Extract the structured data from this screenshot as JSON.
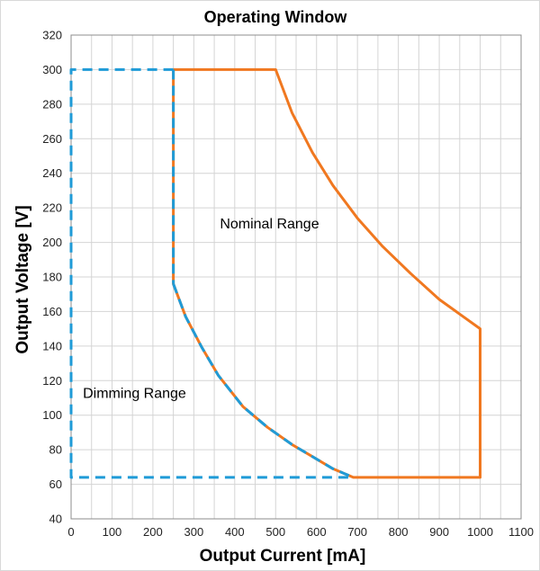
{
  "chart_data": {
    "type": "line",
    "title": "Operating Window",
    "xlabel": "Output Current [mA]",
    "ylabel": "Output Voltage [V]",
    "xlim": [
      0,
      1100
    ],
    "ylim": [
      40,
      320
    ],
    "xticks": [
      0,
      100,
      200,
      300,
      400,
      500,
      600,
      700,
      800,
      900,
      1000,
      1100
    ],
    "yticks": [
      40,
      60,
      80,
      100,
      120,
      140,
      160,
      180,
      200,
      220,
      240,
      260,
      280,
      300,
      320
    ],
    "x_minor_step": 50,
    "grid": true,
    "annotations": [
      {
        "text": "Nominal Range",
        "x": 485,
        "y": 208
      },
      {
        "text": "Dimming Range",
        "x": 155,
        "y": 110
      }
    ],
    "series": [
      {
        "color": "#f07820",
        "style": "solid",
        "points": [
          [
            250,
            300
          ],
          [
            500,
            300
          ],
          [
            540,
            275
          ],
          [
            590,
            252
          ],
          [
            640,
            233
          ],
          [
            700,
            214
          ],
          [
            760,
            198
          ],
          [
            830,
            182
          ],
          [
            900,
            167
          ],
          [
            1000,
            150
          ],
          [
            1000,
            64
          ],
          [
            690,
            64
          ],
          [
            640,
            69
          ],
          [
            590,
            76
          ],
          [
            540,
            83
          ],
          [
            480,
            93
          ],
          [
            420,
            105
          ],
          [
            360,
            123
          ],
          [
            320,
            139
          ],
          [
            280,
            157
          ],
          [
            250,
            176
          ],
          [
            250,
            300
          ]
        ]
      },
      {
        "color": "#1f9bd7",
        "style": "dashed",
        "points": [
          [
            250,
            300
          ],
          [
            0,
            300
          ],
          [
            0,
            64
          ],
          [
            690,
            64
          ]
        ]
      },
      {
        "color": "#1f9bd7",
        "style": "dashed",
        "points": [
          [
            250,
            300
          ],
          [
            250,
            176
          ]
        ]
      },
      {
        "color": "#1f9bd7",
        "style": "dashed",
        "points": [
          [
            250,
            176
          ],
          [
            280,
            157
          ],
          [
            320,
            139
          ],
          [
            360,
            123
          ],
          [
            420,
            105
          ],
          [
            480,
            93
          ],
          [
            540,
            83
          ],
          [
            590,
            76
          ],
          [
            640,
            69
          ],
          [
            690,
            64
          ]
        ]
      }
    ]
  }
}
